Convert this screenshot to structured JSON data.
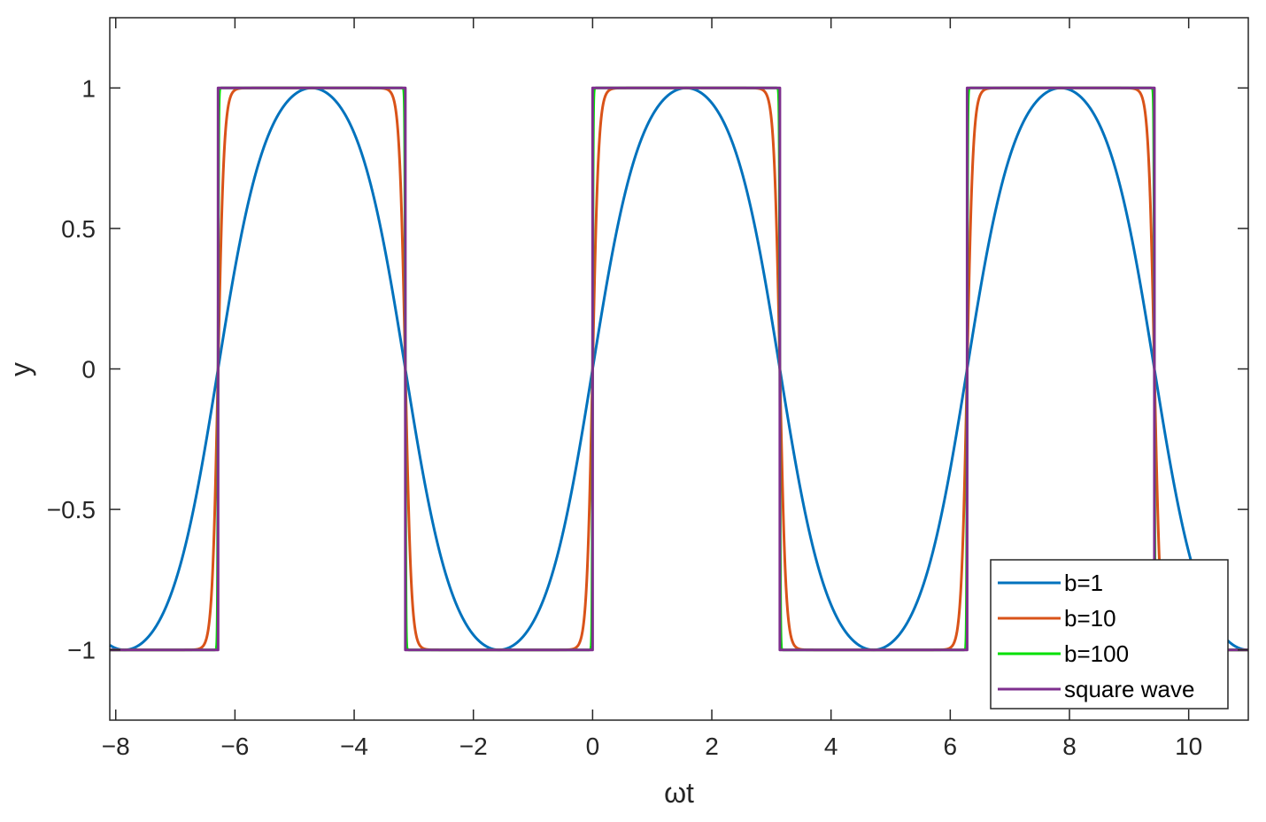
{
  "chart_data": {
    "type": "line",
    "xlabel": "ωt",
    "ylabel": "y",
    "xlim": [
      -8.1,
      11
    ],
    "ylim": [
      -1.25,
      1.25
    ],
    "x_ticks": [
      -8,
      -6,
      -4,
      -2,
      0,
      2,
      4,
      6,
      8,
      10
    ],
    "x_tick_labels": [
      "−8",
      "−6",
      "−4",
      "−2",
      "0",
      "2",
      "4",
      "6",
      "8",
      "10"
    ],
    "y_ticks": [
      -1,
      -0.5,
      0,
      0.5,
      1
    ],
    "y_tick_labels": [
      "−1",
      "−0.5",
      "0",
      "0.5",
      "1"
    ],
    "grid": false,
    "box": true,
    "legend_position": "bottom-right",
    "x_range": [
      -8.1,
      11
    ],
    "sample_step": 0.0015,
    "series": [
      {
        "name": "b=1",
        "b": 1,
        "kind": "tanh-sine",
        "color": "#0072BD"
      },
      {
        "name": "b=10",
        "b": 10,
        "kind": "tanh-sine",
        "color": "#D95319"
      },
      {
        "name": "b=100",
        "b": 100,
        "kind": "tanh-sine",
        "color": "#00E000"
      },
      {
        "name": "square wave",
        "kind": "square",
        "color": "#7E2F8E"
      }
    ]
  }
}
